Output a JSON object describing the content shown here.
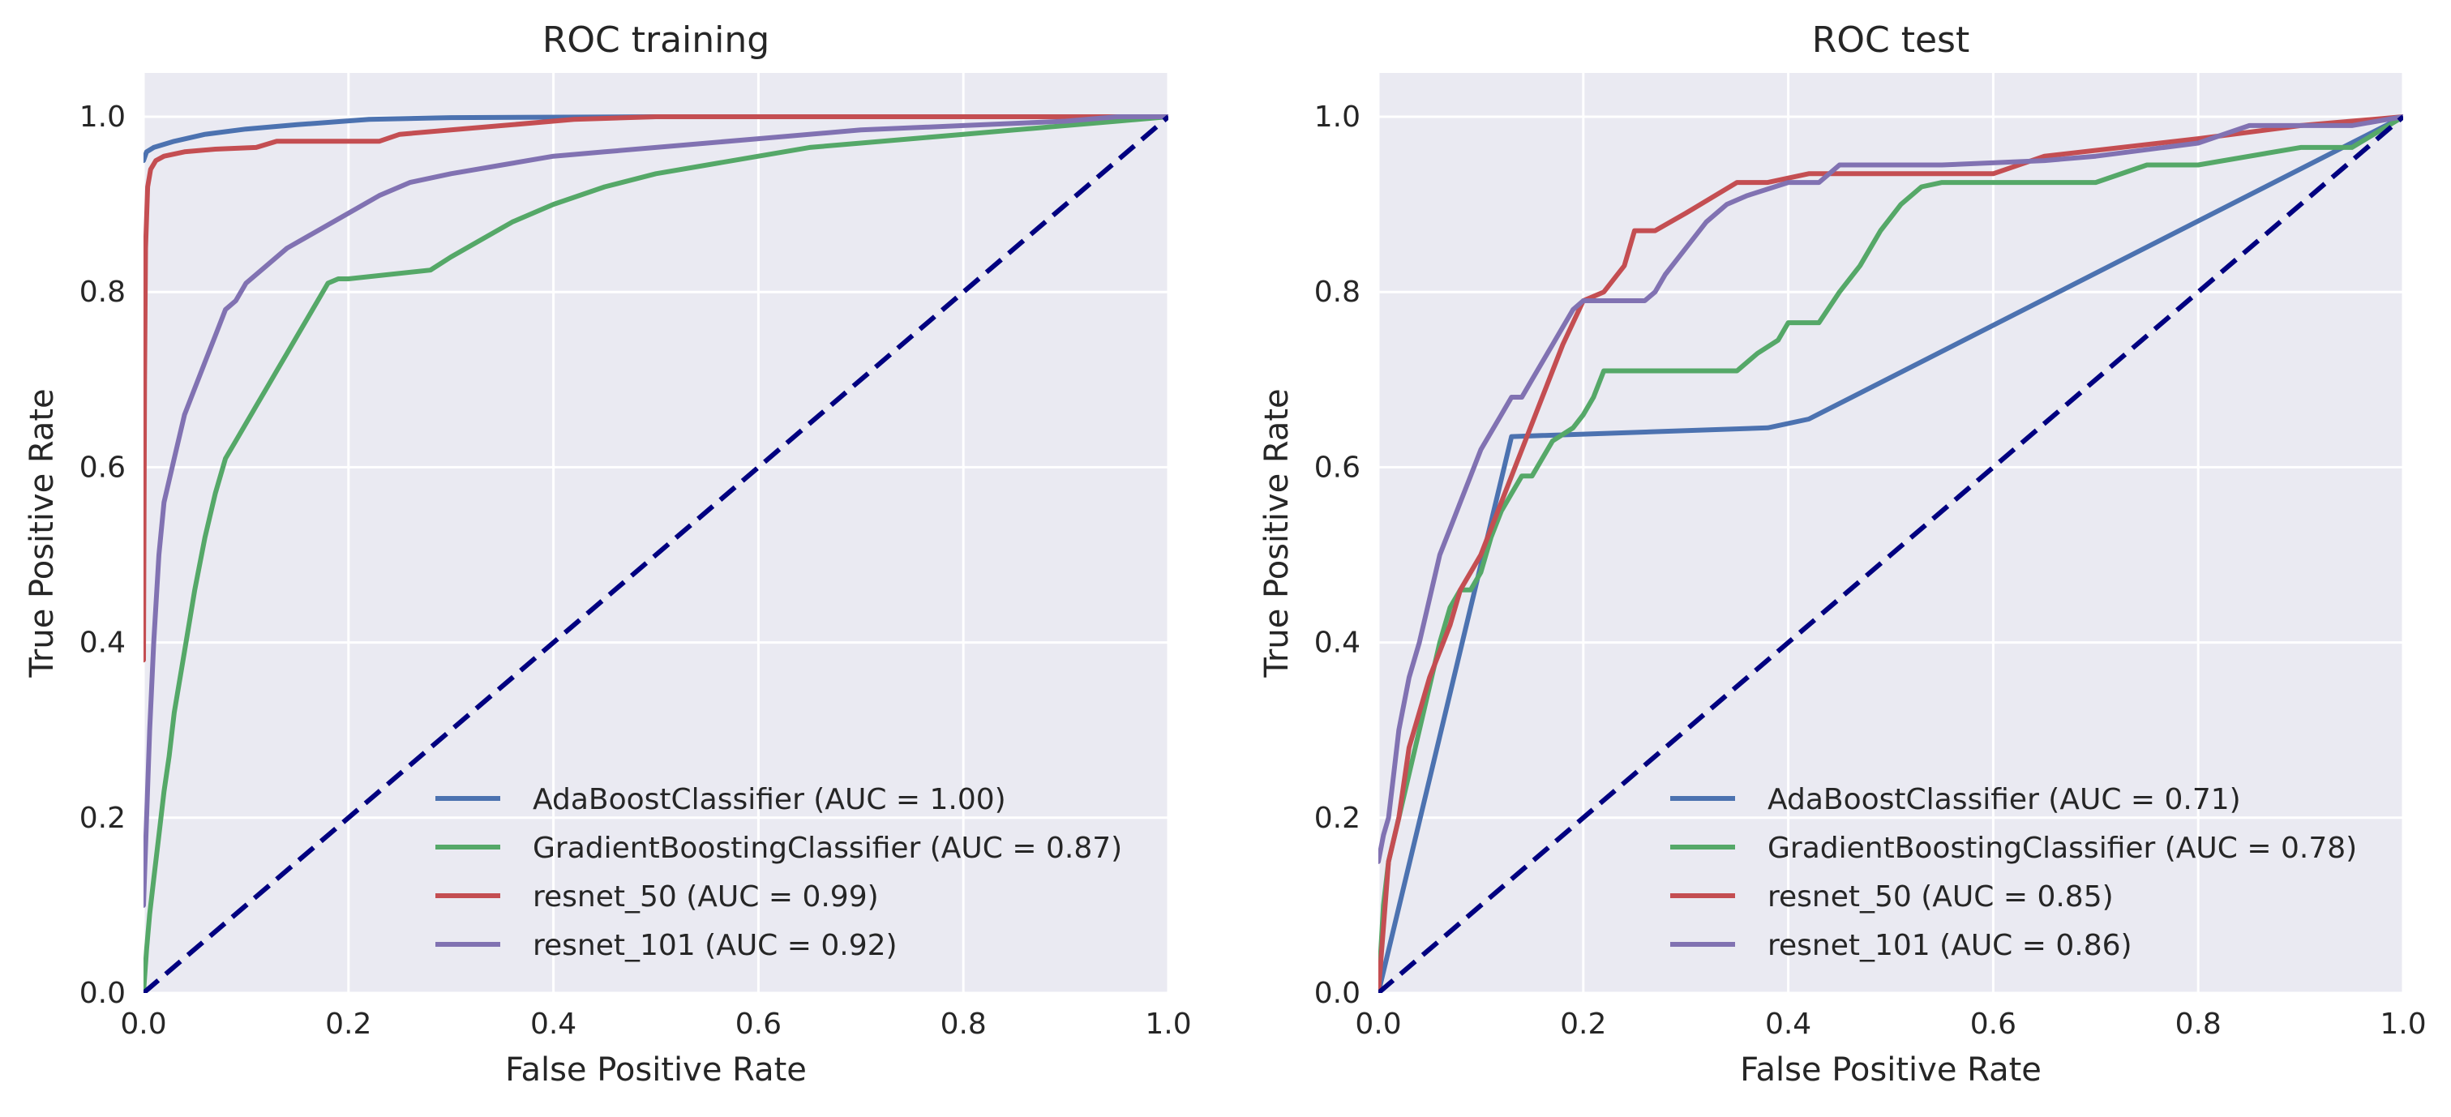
{
  "colors": {
    "background": "#eaeaf2",
    "grid": "#ffffff",
    "text": "#262626",
    "chance_line": "#000080"
  },
  "chart_data": [
    {
      "type": "line",
      "title": "ROC training",
      "xlabel": "False Positive Rate",
      "ylabel": "True Positive Rate",
      "xlim": [
        0,
        1
      ],
      "ylim": [
        0,
        1.05
      ],
      "xticks": [
        0.0,
        0.2,
        0.4,
        0.6,
        0.8,
        1.0
      ],
      "yticks": [
        0.0,
        0.2,
        0.4,
        0.6,
        0.8,
        1.0
      ],
      "xtick_labels": [
        "0.0",
        "0.2",
        "0.4",
        "0.6",
        "0.8",
        "1.0"
      ],
      "ytick_labels": [
        "0.0",
        "0.2",
        "0.4",
        "0.6",
        "0.8",
        "1.0"
      ],
      "grid": true,
      "legend_position": "lower-right",
      "chance_line": {
        "x": [
          0,
          1
        ],
        "y": [
          0,
          1
        ],
        "style": "dashed",
        "color": "#000080"
      },
      "series": [
        {
          "name": "AdaBoostClassifier (AUC = 1.00)",
          "color": "#4c72b0",
          "x": [
            0,
            0.003,
            0.01,
            0.03,
            0.06,
            0.1,
            0.15,
            0.22,
            0.3,
            0.5,
            1.0
          ],
          "y": [
            0.95,
            0.96,
            0.965,
            0.972,
            0.98,
            0.986,
            0.991,
            0.997,
            0.999,
            1.0,
            1.0
          ]
        },
        {
          "name": "GradientBoostingClassifier (AUC = 0.87)",
          "color": "#55a868",
          "x": [
            0,
            0.003,
            0.006,
            0.01,
            0.015,
            0.02,
            0.025,
            0.03,
            0.04,
            0.05,
            0.06,
            0.07,
            0.08,
            0.09,
            0.1,
            0.11,
            0.12,
            0.13,
            0.14,
            0.15,
            0.16,
            0.17,
            0.18,
            0.19,
            0.2,
            0.28,
            0.3,
            0.33,
            0.36,
            0.4,
            0.45,
            0.5,
            0.55,
            0.6,
            0.65,
            0.7,
            0.75,
            0.8,
            0.85,
            0.9,
            0.95,
            1.0
          ],
          "y": [
            0,
            0.05,
            0.09,
            0.13,
            0.18,
            0.23,
            0.27,
            0.32,
            0.39,
            0.46,
            0.52,
            0.57,
            0.61,
            0.63,
            0.65,
            0.67,
            0.69,
            0.71,
            0.73,
            0.75,
            0.77,
            0.79,
            0.81,
            0.815,
            0.815,
            0.825,
            0.84,
            0.86,
            0.88,
            0.9,
            0.92,
            0.935,
            0.945,
            0.955,
            0.965,
            0.97,
            0.975,
            0.98,
            0.985,
            0.99,
            0.995,
            1.0
          ]
        },
        {
          "name": "resnet_50 (AUC = 0.99)",
          "color": "#c44e52",
          "x": [
            0,
            0.001,
            0.002,
            0.004,
            0.007,
            0.012,
            0.02,
            0.04,
            0.07,
            0.11,
            0.13,
            0.23,
            0.25,
            0.3,
            0.35,
            0.42,
            0.5,
            0.6,
            0.8,
            1.0
          ],
          "y": [
            0.38,
            0.7,
            0.85,
            0.92,
            0.94,
            0.95,
            0.955,
            0.96,
            0.963,
            0.965,
            0.972,
            0.972,
            0.98,
            0.985,
            0.99,
            0.997,
            1.0,
            1.0,
            1.0,
            1.0
          ],
          "note": ""
        },
        {
          "name": "resnet_101 (AUC = 0.92)",
          "color": "#8172b2",
          "x": [
            0,
            0.003,
            0.006,
            0.01,
            0.015,
            0.02,
            0.03,
            0.04,
            0.05,
            0.06,
            0.07,
            0.08,
            0.09,
            0.1,
            0.12,
            0.14,
            0.17,
            0.2,
            0.23,
            0.26,
            0.3,
            0.35,
            0.4,
            0.45,
            0.5,
            0.6,
            0.7,
            0.8,
            0.9,
            0.95,
            1.0
          ],
          "y": [
            0.1,
            0.2,
            0.3,
            0.4,
            0.5,
            0.56,
            0.61,
            0.66,
            0.69,
            0.72,
            0.75,
            0.78,
            0.79,
            0.81,
            0.83,
            0.85,
            0.87,
            0.89,
            0.91,
            0.925,
            0.935,
            0.945,
            0.955,
            0.96,
            0.965,
            0.975,
            0.985,
            0.99,
            0.995,
            1.0,
            1.0
          ]
        }
      ]
    },
    {
      "type": "line",
      "title": "ROC test",
      "xlabel": "False Positive Rate",
      "ylabel": "True Positive Rate",
      "xlim": [
        0,
        1
      ],
      "ylim": [
        0,
        1.05
      ],
      "xticks": [
        0.0,
        0.2,
        0.4,
        0.6,
        0.8,
        1.0
      ],
      "yticks": [
        0.0,
        0.2,
        0.4,
        0.6,
        0.8,
        1.0
      ],
      "xtick_labels": [
        "0.0",
        "0.2",
        "0.4",
        "0.6",
        "0.8",
        "1.0"
      ],
      "ytick_labels": [
        "0.0",
        "0.2",
        "0.4",
        "0.6",
        "0.8",
        "1.0"
      ],
      "grid": true,
      "legend_position": "lower-right",
      "chance_line": {
        "x": [
          0,
          1
        ],
        "y": [
          0,
          1
        ],
        "style": "dashed",
        "color": "#000080"
      },
      "series": [
        {
          "name": "AdaBoostClassifier (AUC = 0.71)",
          "color": "#4c72b0",
          "x": [
            0,
            0.13,
            0.38,
            0.42,
            1.0
          ],
          "y": [
            0,
            0.635,
            0.645,
            0.655,
            1.0
          ]
        },
        {
          "name": "GradientBoostingClassifier (AUC = 0.78)",
          "color": "#55a868",
          "x": [
            0,
            0.005,
            0.01,
            0.02,
            0.03,
            0.04,
            0.05,
            0.06,
            0.07,
            0.08,
            0.09,
            0.1,
            0.11,
            0.12,
            0.13,
            0.14,
            0.15,
            0.17,
            0.19,
            0.2,
            0.21,
            0.22,
            0.25,
            0.3,
            0.35,
            0.37,
            0.39,
            0.4,
            0.43,
            0.45,
            0.47,
            0.49,
            0.51,
            0.53,
            0.55,
            0.7,
            0.75,
            0.8,
            0.9,
            0.95,
            1.0
          ],
          "y": [
            0,
            0.1,
            0.15,
            0.2,
            0.25,
            0.3,
            0.35,
            0.4,
            0.44,
            0.46,
            0.46,
            0.48,
            0.52,
            0.55,
            0.57,
            0.59,
            0.59,
            0.63,
            0.645,
            0.66,
            0.68,
            0.71,
            0.71,
            0.71,
            0.71,
            0.73,
            0.745,
            0.765,
            0.765,
            0.8,
            0.83,
            0.87,
            0.9,
            0.92,
            0.925,
            0.925,
            0.945,
            0.945,
            0.965,
            0.965,
            1.0
          ]
        },
        {
          "name": "resnet_50 (AUC = 0.85)",
          "color": "#c44e52",
          "x": [
            0,
            0.01,
            0.02,
            0.03,
            0.05,
            0.07,
            0.08,
            0.1,
            0.12,
            0.14,
            0.16,
            0.18,
            0.2,
            0.22,
            0.24,
            0.25,
            0.27,
            0.3,
            0.35,
            0.38,
            0.42,
            0.6,
            0.65,
            0.8,
            0.9,
            1.0
          ],
          "y": [
            0,
            0.15,
            0.2,
            0.28,
            0.36,
            0.42,
            0.46,
            0.5,
            0.56,
            0.62,
            0.68,
            0.74,
            0.79,
            0.8,
            0.83,
            0.87,
            0.87,
            0.89,
            0.925,
            0.925,
            0.935,
            0.935,
            0.955,
            0.975,
            0.99,
            1.0
          ]
        },
        {
          "name": "resnet_101 (AUC = 0.86)",
          "color": "#8172b2",
          "x": [
            0,
            0.005,
            0.01,
            0.015,
            0.02,
            0.025,
            0.03,
            0.04,
            0.05,
            0.06,
            0.07,
            0.08,
            0.09,
            0.1,
            0.11,
            0.12,
            0.13,
            0.14,
            0.15,
            0.16,
            0.17,
            0.18,
            0.19,
            0.2,
            0.26,
            0.27,
            0.28,
            0.3,
            0.32,
            0.34,
            0.36,
            0.4,
            0.43,
            0.45,
            0.55,
            0.65,
            0.7,
            0.8,
            0.85,
            0.9,
            0.95,
            1.0
          ],
          "y": [
            0.15,
            0.18,
            0.2,
            0.25,
            0.3,
            0.33,
            0.36,
            0.4,
            0.45,
            0.5,
            0.53,
            0.56,
            0.59,
            0.62,
            0.64,
            0.66,
            0.68,
            0.68,
            0.7,
            0.72,
            0.74,
            0.76,
            0.78,
            0.79,
            0.79,
            0.8,
            0.82,
            0.85,
            0.88,
            0.9,
            0.91,
            0.925,
            0.925,
            0.945,
            0.945,
            0.95,
            0.955,
            0.97,
            0.99,
            0.99,
            0.99,
            1.0
          ]
        }
      ]
    }
  ]
}
